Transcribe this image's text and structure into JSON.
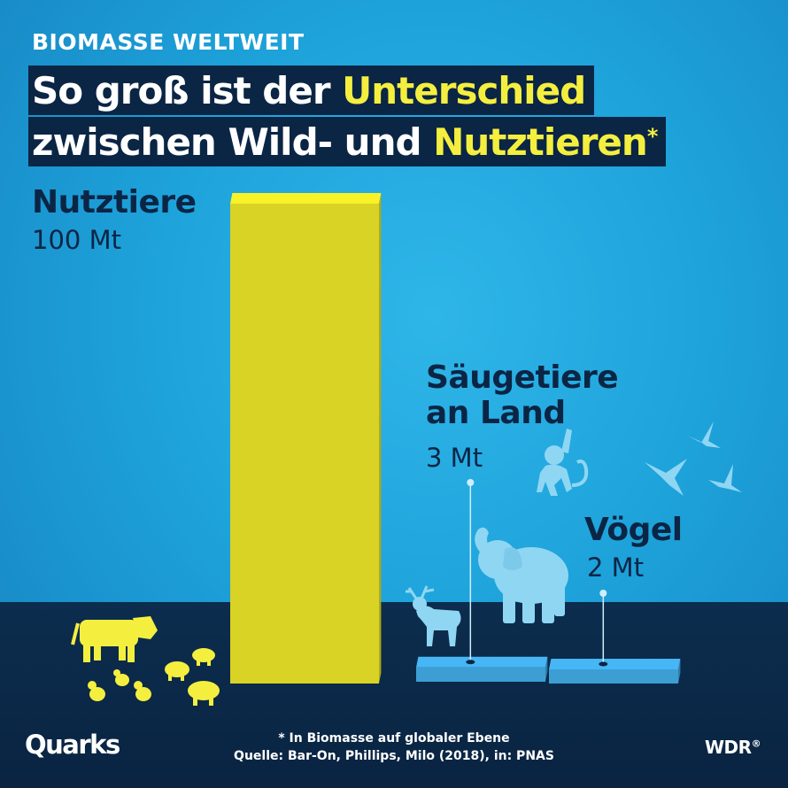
{
  "kicker": "BIOMASSE WELTWEIT",
  "headline": {
    "line1_white": "So groß ist der",
    "line1_yellow": "Unterschied",
    "line2_white": "zwischen Wild- und",
    "line2_yellow": "Nutztieren",
    "asterisk": "*"
  },
  "chart_data": {
    "type": "bar",
    "unit": "Mt",
    "categories": [
      "Nutztiere",
      "Säugetiere an Land",
      "Vögel"
    ],
    "values": [
      100,
      3,
      2
    ],
    "value_labels": [
      "100 Mt",
      "3 Mt",
      "2 Mt"
    ],
    "colors": [
      "#d8d324",
      "#3d9ed4",
      "#3d9ed4"
    ]
  },
  "labels": {
    "nutztiere_name": "Nutztiere",
    "nutztiere_value": "100 Mt",
    "saeugetiere_line1": "Säugetiere",
    "saeugetiere_line2": "an Land",
    "saeugetiere_value": "3 Mt",
    "voegel_name": "Vögel",
    "voegel_value": "2 Mt"
  },
  "footnote": {
    "line1": "* In Biomasse auf globaler Ebene",
    "line2": "Quelle: Bar-On, Phillips, Milo (2018), in: PNAS"
  },
  "logos": {
    "left": "Quarks",
    "right": "WDR",
    "right_mark": "®"
  },
  "colors": {
    "background": "#1ea3db",
    "floor": "#0b2545",
    "accent_yellow": "#f4ef3f",
    "livestock_bar": "#d8d324",
    "wild_bar": "#3d9ed4",
    "livestock_icons": "#f4ef3f",
    "wild_icons": "#8fd6f3"
  },
  "icons": [
    "cow-icon",
    "pig-icon",
    "chicken-icon",
    "elephant-icon",
    "deer-icon",
    "monkey-icon",
    "bird-icon"
  ]
}
